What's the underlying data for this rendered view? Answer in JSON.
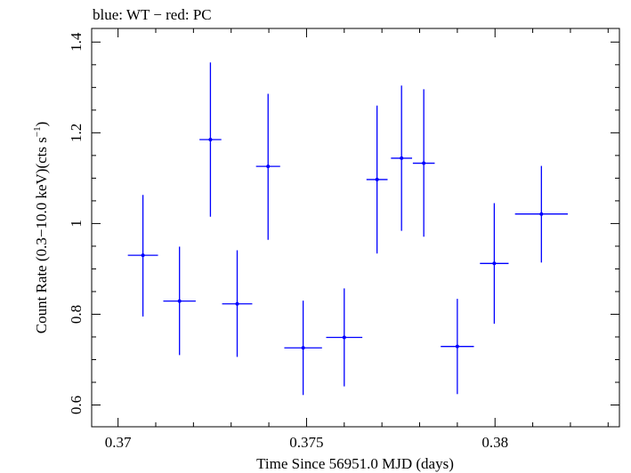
{
  "chart_data": {
    "type": "scatter",
    "title": "blue: WT − red: PC",
    "xlabel": "Time Since 56951.0 MJD (days)",
    "ylabel_main": "Count Rate (0.3−10.0 keV)(cts s",
    "ylabel_sup": "−1",
    "ylabel_close": ")",
    "xlim": [
      0.3693,
      0.3833
    ],
    "ylim": [
      0.552,
      1.43
    ],
    "x_ticks": [
      {
        "value": 0.37,
        "label": "0.37"
      },
      {
        "value": 0.375,
        "label": "0.375"
      },
      {
        "value": 0.38,
        "label": "0.38"
      }
    ],
    "y_ticks": [
      {
        "value": 0.6,
        "label": "0.6"
      },
      {
        "value": 0.8,
        "label": "0.8"
      },
      {
        "value": 1.0,
        "label": "1"
      },
      {
        "value": 1.2,
        "label": "1.2"
      },
      {
        "value": 1.4,
        "label": "1.4"
      }
    ],
    "series": [
      {
        "color": "#0000ff",
        "points": [
          {
            "x": 0.37066,
            "xerr": 0.0004,
            "y": 0.93,
            "yerr": [
              0.135,
              0.133
            ]
          },
          {
            "x": 0.37163,
            "xerr": 0.00043,
            "y": 0.829,
            "yerr": [
              0.119,
              0.12
            ]
          },
          {
            "x": 0.37245,
            "xerr": 0.00029,
            "y": 1.185,
            "yerr": [
              0.17,
              0.17
            ]
          },
          {
            "x": 0.37316,
            "xerr": 0.0004,
            "y": 0.823,
            "yerr": [
              0.117,
              0.118
            ]
          },
          {
            "x": 0.37398,
            "xerr": 0.00032,
            "y": 1.126,
            "yerr": [
              0.162,
              0.16
            ]
          },
          {
            "x": 0.37491,
            "xerr": 0.0005,
            "y": 0.726,
            "yerr": [
              0.104,
              0.104
            ]
          },
          {
            "x": 0.376,
            "xerr": 0.00048,
            "y": 0.749,
            "yerr": [
              0.108,
              0.108
            ]
          },
          {
            "x": 0.37687,
            "xerr": 0.00028,
            "y": 1.097,
            "yerr": [
              0.163,
              0.163
            ]
          },
          {
            "x": 0.37752,
            "xerr": 0.00028,
            "y": 1.144,
            "yerr": [
              0.16,
              0.16
            ]
          },
          {
            "x": 0.37811,
            "xerr": 0.00029,
            "y": 1.133,
            "yerr": [
              0.162,
              0.163
            ]
          },
          {
            "x": 0.379,
            "xerr": 0.00044,
            "y": 0.729,
            "yerr": [
              0.105,
              0.105
            ]
          },
          {
            "x": 0.37998,
            "xerr": 0.00038,
            "y": 0.912,
            "yerr": [
              0.133,
              0.133
            ]
          },
          {
            "x": 0.38123,
            "xerr": 0.0007,
            "y": 1.021,
            "yerr": [
              0.107,
              0.106
            ]
          }
        ]
      }
    ]
  }
}
